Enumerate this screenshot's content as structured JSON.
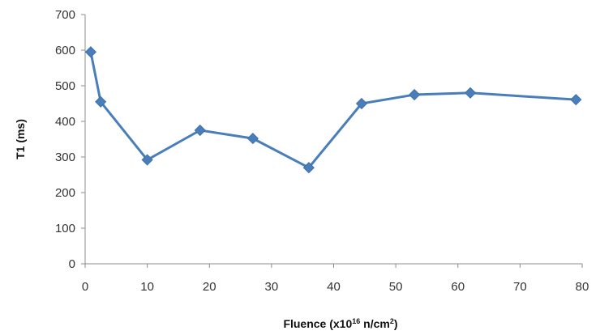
{
  "chart_data": {
    "type": "line",
    "title": "",
    "xlabel_parts": [
      "Fluence (x10",
      "16",
      " n/cm",
      "2",
      ")"
    ],
    "ylabel": "T1 (ms)",
    "xlim": [
      0,
      80
    ],
    "ylim": [
      0,
      700
    ],
    "x_ticks": [
      0,
      10,
      20,
      30,
      40,
      50,
      60,
      70,
      80
    ],
    "y_ticks": [
      0,
      100,
      200,
      300,
      400,
      500,
      600,
      700
    ],
    "grid": false,
    "legend": "none",
    "series": [
      {
        "color": "#4a7ebb",
        "marker": "diamond",
        "x": [
          0.9,
          2.5,
          10,
          18.5,
          27,
          36,
          44.5,
          53,
          62,
          79
        ],
        "y": [
          595,
          455,
          292,
          375,
          352,
          270,
          450,
          475,
          480,
          461
        ]
      }
    ]
  }
}
